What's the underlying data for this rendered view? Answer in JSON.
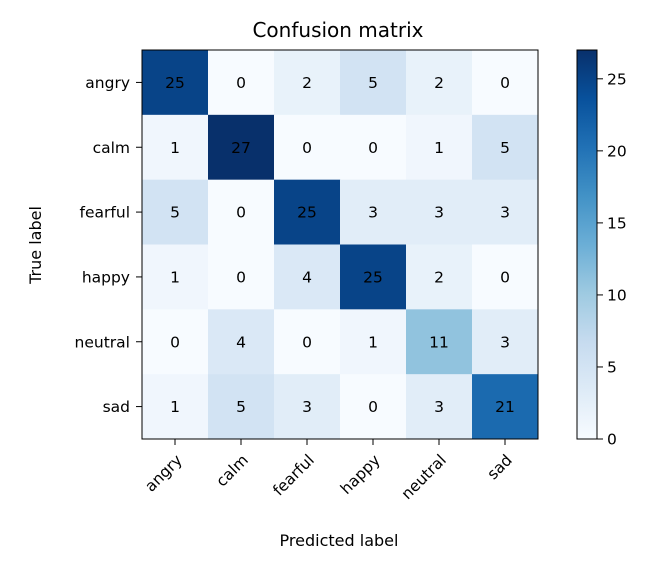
{
  "chart_data": {
    "type": "heatmap",
    "title": "Confusion matrix",
    "xlabel": "Predicted label",
    "ylabel": "True label",
    "x_categories": [
      "angry",
      "calm",
      "fearful",
      "happy",
      "neutral",
      "sad"
    ],
    "y_categories": [
      "angry",
      "calm",
      "fearful",
      "happy",
      "neutral",
      "sad"
    ],
    "values": [
      [
        25,
        0,
        2,
        5,
        2,
        0
      ],
      [
        1,
        27,
        0,
        0,
        1,
        5
      ],
      [
        5,
        0,
        25,
        3,
        3,
        3
      ],
      [
        1,
        0,
        4,
        25,
        2,
        0
      ],
      [
        0,
        4,
        0,
        1,
        11,
        3
      ],
      [
        1,
        5,
        3,
        0,
        3,
        21
      ]
    ],
    "colormap": "Blues",
    "colorbar": {
      "min": 0,
      "max": 27,
      "ticks": [
        0,
        5,
        10,
        15,
        20,
        25
      ]
    },
    "text_colors": {
      "light": "#ffffff",
      "dark": "#000000"
    },
    "grid": false
  }
}
